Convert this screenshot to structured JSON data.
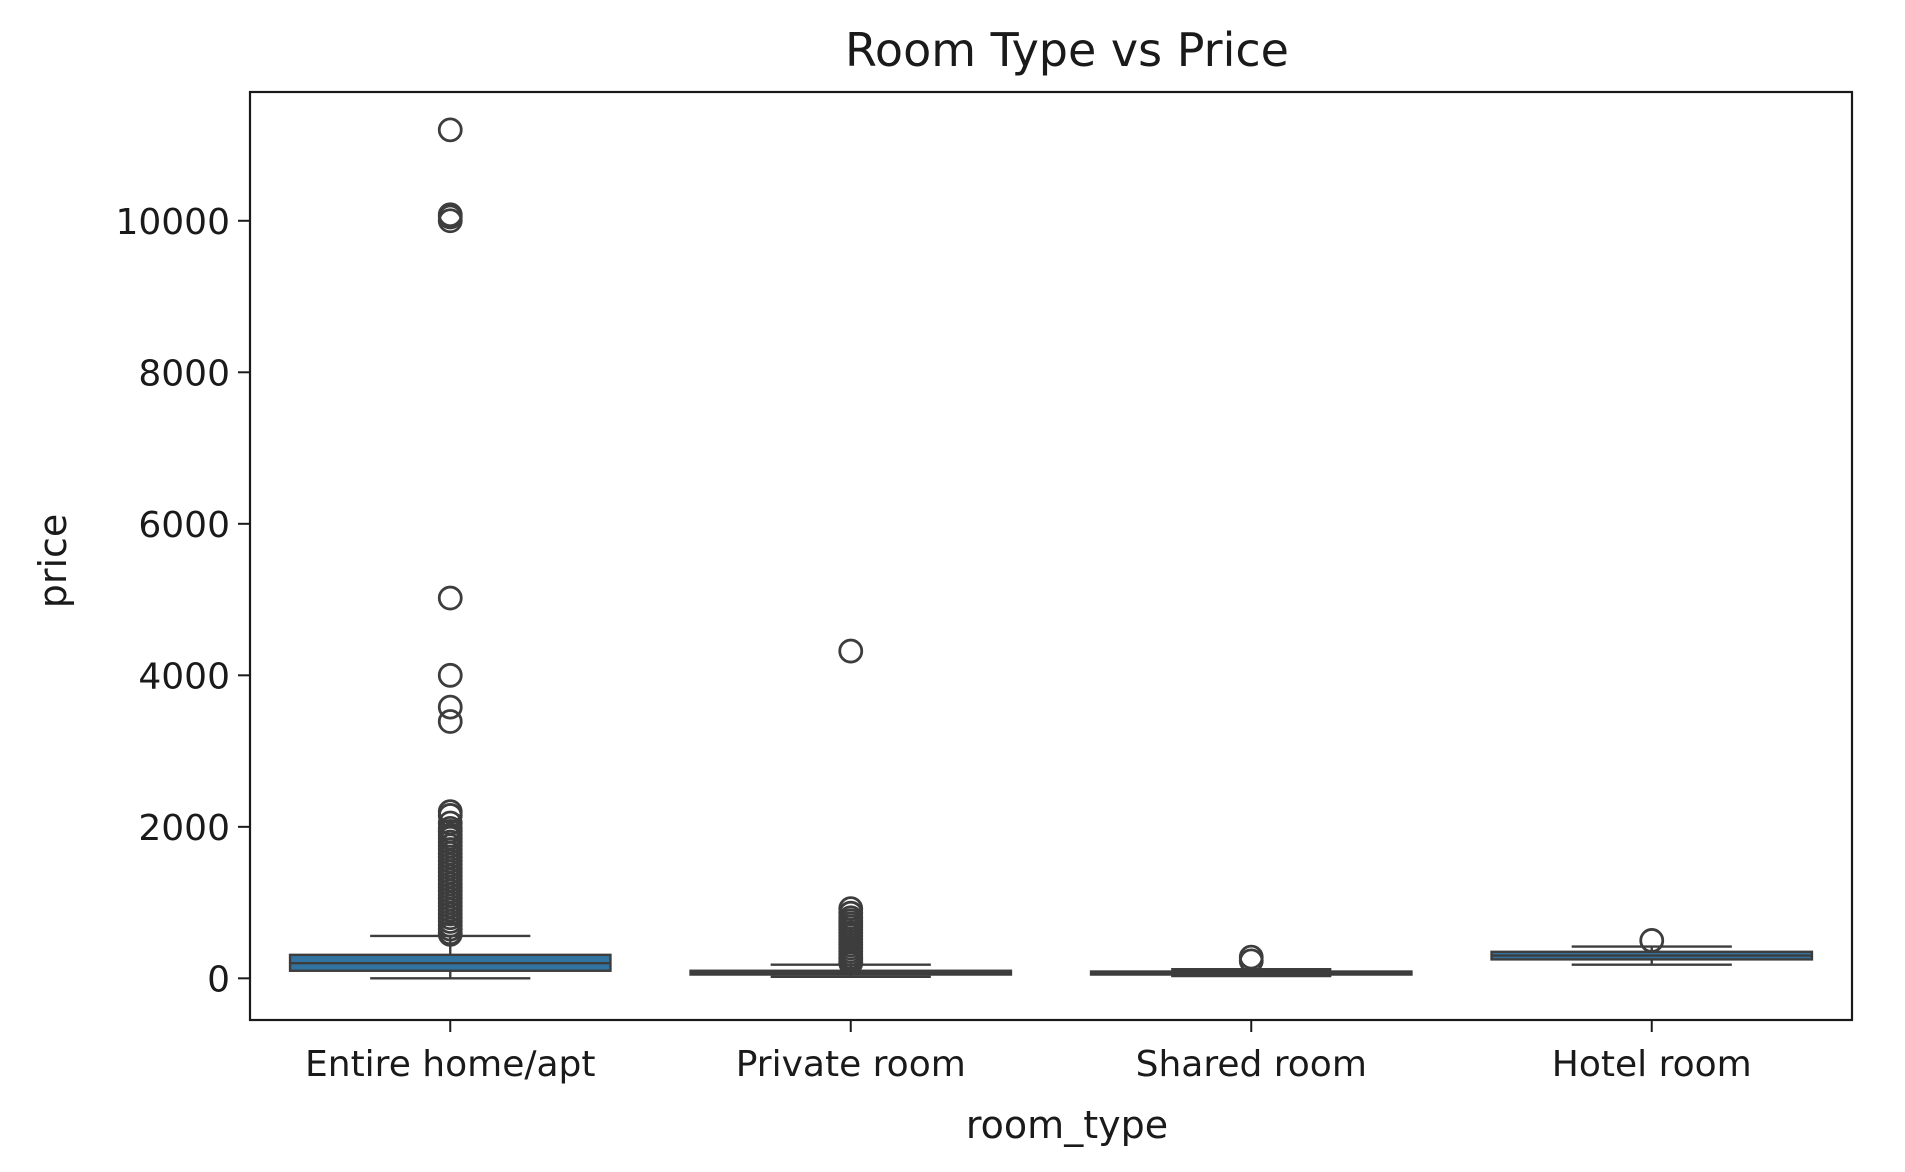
{
  "chart_data": {
    "type": "box",
    "title": "Room Type vs Price",
    "xlabel": "room_type",
    "ylabel": "price",
    "ylim": [
      -550,
      11700
    ],
    "yticks": [
      0,
      2000,
      4000,
      6000,
      8000,
      10000
    ],
    "grid": false,
    "box_color": "#3274a1",
    "line_color": "#3d3d3d",
    "categories": [
      "Entire home/apt",
      "Private room",
      "Shared room",
      "Hotel room"
    ],
    "boxes": [
      {
        "category": "Entire home/apt",
        "whisker_low": 0,
        "q1": 100,
        "median": 200,
        "q3": 310,
        "whisker_high": 560,
        "outliers": [
          11200,
          10080,
          10050,
          10000,
          5020,
          4000,
          3580,
          3390,
          2200,
          2150,
          2050,
          1980,
          1940,
          1890,
          1850,
          1800,
          1750,
          1700,
          1650,
          1600,
          1550,
          1500,
          1450,
          1400,
          1350,
          1300,
          1250,
          1200,
          1150,
          1100,
          1050,
          1000,
          950,
          900,
          850,
          800,
          750,
          700,
          650,
          600,
          580
        ]
      },
      {
        "category": "Private room",
        "whisker_low": 20,
        "q1": 50,
        "median": 70,
        "q3": 100,
        "whisker_high": 180,
        "outliers": [
          4320,
          920,
          860,
          800,
          760,
          720,
          680,
          640,
          600,
          560,
          520,
          480,
          440,
          400,
          360,
          320,
          280,
          250,
          220,
          200
        ]
      },
      {
        "category": "Shared room",
        "whisker_low": 30,
        "q1": 50,
        "median": 70,
        "q3": 90,
        "whisker_high": 120,
        "outliers": [
          280,
          230
        ]
      },
      {
        "category": "Hotel room",
        "whisker_low": 180,
        "q1": 250,
        "median": 300,
        "q3": 350,
        "whisker_high": 420,
        "outliers": [
          500
        ]
      }
    ]
  }
}
